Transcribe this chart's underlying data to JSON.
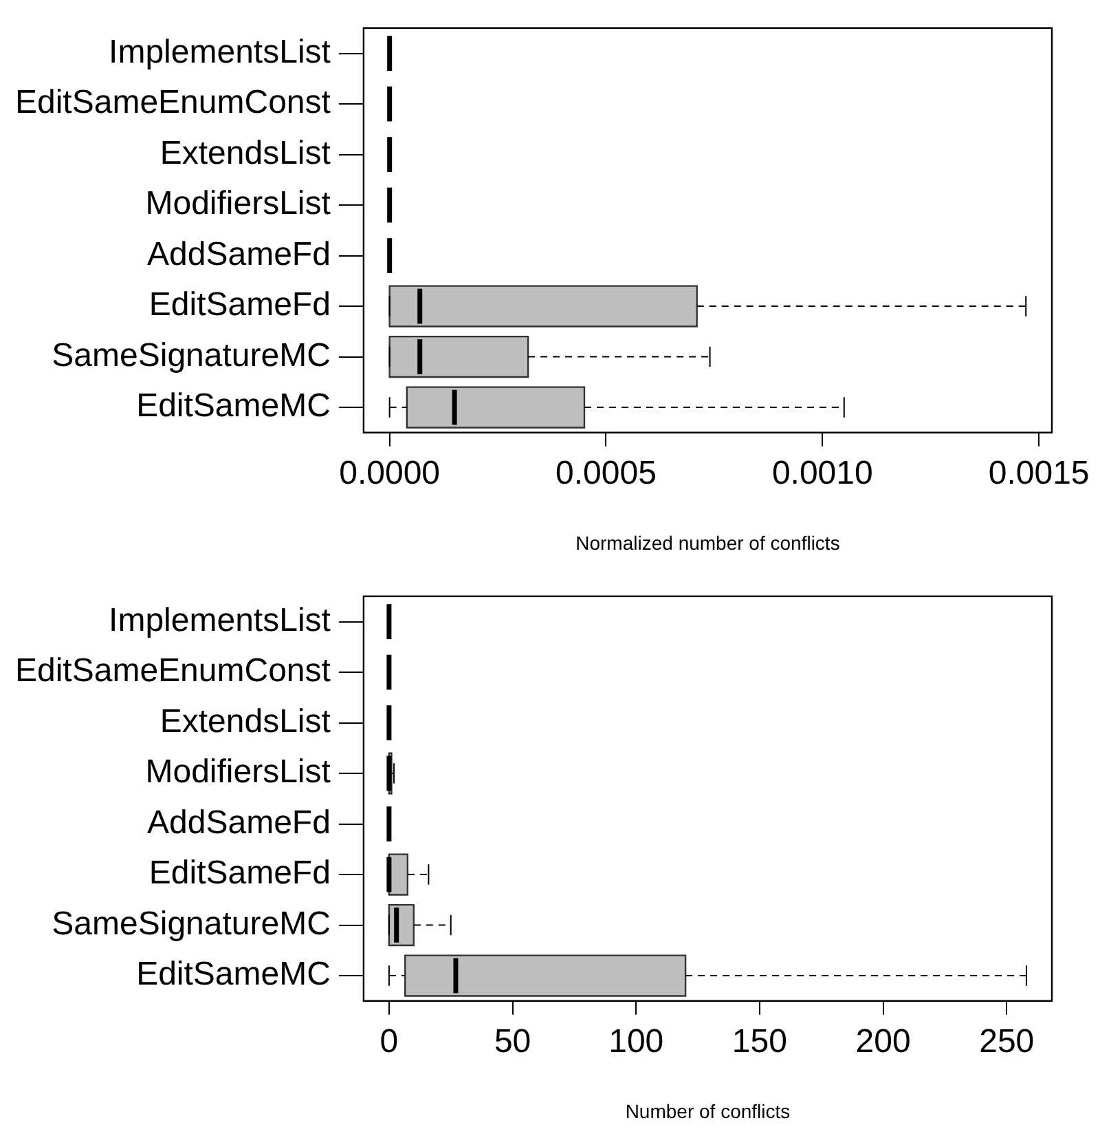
{
  "chart_data": [
    {
      "type": "box",
      "orientation": "horizontal",
      "xlabel": "Normalized number of conflicts",
      "colors": [
        "#000000",
        "#000000",
        "#000000",
        "#000000",
        "#000000",
        "#bebebe",
        "#bebebe",
        "#bebebe"
      ],
      "grid": false,
      "categories": [
        "ImplementsList",
        "EditSameEnumConst",
        "ExtendsList",
        "ModifiersList",
        "AddSameFd",
        "EditSameFd",
        "SameSignatureMC",
        "EditSameMC"
      ],
      "boxes": [
        {
          "low": 0,
          "q1": 0,
          "median": 0,
          "q3": 0,
          "high": 0
        },
        {
          "low": 0,
          "q1": 0,
          "median": 0,
          "q3": 0,
          "high": 0
        },
        {
          "low": 0,
          "q1": 0,
          "median": 0,
          "q3": 0,
          "high": 0
        },
        {
          "low": 0,
          "q1": 0,
          "median": 0,
          "q3": 0,
          "high": 0
        },
        {
          "low": 0,
          "q1": 0,
          "median": 0,
          "q3": 0,
          "high": 0
        },
        {
          "low": 0,
          "q1": 0,
          "median": 7e-05,
          "q3": 0.00071,
          "high": 0.00147
        },
        {
          "low": 0,
          "q1": 0,
          "median": 7e-05,
          "q3": 0.00032,
          "high": 0.00074
        },
        {
          "low": 0,
          "q1": 4e-05,
          "median": 0.00015,
          "q3": 0.00045,
          "high": 0.00105
        }
      ],
      "xlim": [
        -6e-05,
        0.00153
      ],
      "xticks": [
        {
          "value": 0,
          "label": "0.0000"
        },
        0.0005,
        {
          "value": 0.001,
          "label": "0.0010"
        },
        0.0015
      ]
    },
    {
      "type": "box",
      "orientation": "horizontal",
      "xlabel": "Number of conflicts",
      "colors": [
        "#000000",
        "#000000",
        "#000000",
        "#bebebe",
        "#000000",
        "#bebebe",
        "#bebebe",
        "#bebebe"
      ],
      "grid": false,
      "categories": [
        "ImplementsList",
        "EditSameEnumConst",
        "ExtendsList",
        "ModifiersList",
        "AddSameFd",
        "EditSameFd",
        "SameSignatureMC",
        "EditSameMC"
      ],
      "boxes": [
        {
          "low": 0,
          "q1": 0,
          "median": 0,
          "q3": 0,
          "high": 0
        },
        {
          "low": 0,
          "q1": 0,
          "median": 0,
          "q3": 0,
          "high": 0
        },
        {
          "low": 0,
          "q1": 0,
          "median": 0,
          "q3": 0,
          "high": 0
        },
        {
          "low": 0,
          "q1": 0,
          "median": 0,
          "q3": 1,
          "high": 2
        },
        {
          "low": 0,
          "q1": 0,
          "median": 0,
          "q3": 0,
          "high": 0
        },
        {
          "low": 0,
          "q1": 0,
          "median": 0,
          "q3": 7.5,
          "high": 16
        },
        {
          "low": 0,
          "q1": 0,
          "median": 3,
          "q3": 10,
          "high": 25
        },
        {
          "low": 0,
          "q1": 6.5,
          "median": 27,
          "q3": 120,
          "high": 258
        }
      ],
      "xlim": [
        -10.3,
        268.3
      ],
      "xticks": [
        0,
        50,
        100,
        150,
        200,
        250
      ]
    }
  ]
}
